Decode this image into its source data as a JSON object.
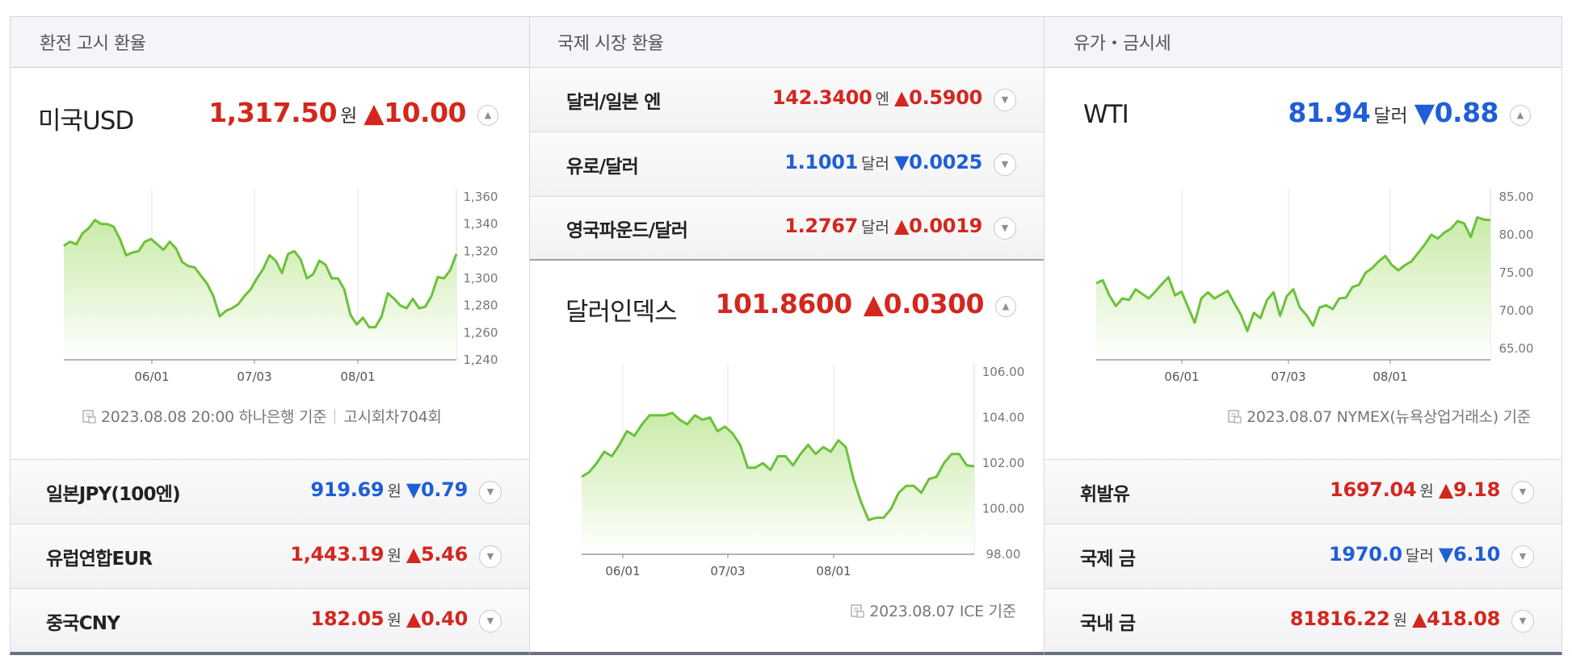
{
  "panels": {
    "exchange": {
      "header": "환전 고시 환율",
      "main": {
        "title": "미국USD",
        "value": "1,317.50",
        "unit": "원",
        "change": "▲10.00",
        "direction": "up"
      },
      "source": {
        "date": "2023.08.08 20:00 하나은행 기준",
        "extra": "고시회차704회"
      },
      "rows": [
        {
          "label": "일본JPY(100엔)",
          "value": "919.69",
          "unit": "원",
          "change": "▼0.79",
          "direction": "down"
        },
        {
          "label": "유럽연합EUR",
          "value": "1,443.19",
          "unit": "원",
          "change": "▲5.46",
          "direction": "up"
        },
        {
          "label": "중국CNY",
          "value": "182.05",
          "unit": "원",
          "change": "▲0.40",
          "direction": "up"
        }
      ]
    },
    "international": {
      "header": "국제 시장 환율",
      "rows": [
        {
          "label": "달러/일본 엔",
          "value": "142.3400",
          "unit": "엔",
          "change": "▲0.5900",
          "direction": "up"
        },
        {
          "label": "유로/달러",
          "value": "1.1001",
          "unit": "달러",
          "change": "▼0.0025",
          "direction": "down"
        },
        {
          "label": "영국파운드/달러",
          "value": "1.2767",
          "unit": "달러",
          "change": "▲0.0019",
          "direction": "up"
        }
      ],
      "main": {
        "title": "달러인덱스",
        "value": "101.8600",
        "unit": "",
        "change": "▲0.0300",
        "direction": "up"
      },
      "source": {
        "date": "2023.08.07 ICE 기준"
      }
    },
    "commodities": {
      "header": "유가・금시세",
      "main": {
        "title": "WTI",
        "value": "81.94",
        "unit": "달러",
        "change": "▼0.88",
        "direction": "down"
      },
      "source": {
        "date": "2023.08.07 NYMEX(뉴욕상업거래소) 기준"
      },
      "rows": [
        {
          "label": "휘발유",
          "value": "1697.04",
          "unit": "원",
          "change": "▲9.18",
          "direction": "up"
        },
        {
          "label": "국제 금",
          "value": "1970.0",
          "unit": "달러",
          "change": "▼6.10",
          "direction": "down"
        },
        {
          "label": "국내 금",
          "value": "81816.22",
          "unit": "원",
          "change": "▲418.08",
          "direction": "up"
        }
      ]
    }
  },
  "colors": {
    "up": "#d3271e",
    "down": "#1f5ed6",
    "line": "#6cc13a",
    "fill_top": "#c9eba8",
    "fill_bottom": "#ffffff"
  },
  "icons": {
    "toggle": "chevron-up-icon",
    "row_toggle": "chevron-down-icon",
    "source": "document-icon"
  },
  "chart_data": [
    {
      "type": "area",
      "series": [
        {
          "name": "미국USD",
          "values": [
            1324,
            1327,
            1325,
            1333,
            1337,
            1343,
            1340,
            1340,
            1338,
            1329,
            1317,
            1319,
            1320,
            1327,
            1329,
            1325,
            1321,
            1327,
            1322,
            1312,
            1309,
            1308,
            1302,
            1296,
            1287,
            1272,
            1276,
            1278,
            1281,
            1287,
            1292,
            1300,
            1307,
            1317,
            1313,
            1304,
            1318,
            1320,
            1314,
            1300,
            1303,
            1313,
            1310,
            1300,
            1300,
            1292,
            1273,
            1266,
            1271,
            1264,
            1264,
            1272,
            1289,
            1285,
            1280,
            1278,
            1285,
            1278,
            1279,
            1287,
            1301,
            1300,
            1306,
            1318
          ]
        }
      ],
      "x_labels": [
        "06/01",
        "07/03",
        "08/01"
      ],
      "ylim": [
        1240,
        1360
      ],
      "yticks": [
        "1,360",
        "1,340",
        "1,320",
        "1,300",
        "1,280",
        "1,260",
        "1,240"
      ]
    },
    {
      "type": "area",
      "series": [
        {
          "name": "달러인덱스",
          "values": [
            101.4,
            101.6,
            102.0,
            102.5,
            102.3,
            102.8,
            103.4,
            103.2,
            103.7,
            104.1,
            104.1,
            104.1,
            104.2,
            103.9,
            103.7,
            104.1,
            103.9,
            104.0,
            103.4,
            103.6,
            103.3,
            102.8,
            101.8,
            101.8,
            102.0,
            101.7,
            102.3,
            102.3,
            101.9,
            102.4,
            102.8,
            102.4,
            102.7,
            102.5,
            103.0,
            102.7,
            101.3,
            100.3,
            99.5,
            99.6,
            99.6,
            100.0,
            100.7,
            101.0,
            101.0,
            100.7,
            101.3,
            101.4,
            102.0,
            102.4,
            102.4,
            101.9,
            101.86
          ]
        }
      ],
      "x_labels": [
        "06/01",
        "07/03",
        "08/01"
      ],
      "ylim": [
        98.0,
        106.0
      ],
      "yticks": [
        "106.00",
        "104.00",
        "102.00",
        "100.00",
        "98.00"
      ]
    },
    {
      "type": "area",
      "series": [
        {
          "name": "WTI",
          "values": [
            73.6,
            74.0,
            72.0,
            70.6,
            71.6,
            71.4,
            72.8,
            72.2,
            71.6,
            72.5,
            73.5,
            74.4,
            72.0,
            72.5,
            70.4,
            68.4,
            71.6,
            72.4,
            71.6,
            72.1,
            72.6,
            71.0,
            69.5,
            67.3,
            69.7,
            69.0,
            71.4,
            72.4,
            69.3,
            71.9,
            72.8,
            70.4,
            69.4,
            68.0,
            70.4,
            70.7,
            70.2,
            71.6,
            71.7,
            73.1,
            73.4,
            75.0,
            75.6,
            76.5,
            77.2,
            76.0,
            75.3,
            76.0,
            76.5,
            77.6,
            78.7,
            80.0,
            79.5,
            80.3,
            80.8,
            81.8,
            81.5,
            79.7,
            82.3,
            82.0,
            81.94
          ]
        }
      ],
      "x_labels": [
        "06/01",
        "07/03",
        "08/01"
      ],
      "ylim": [
        63.5,
        85.0
      ],
      "yticks": [
        "85.00",
        "80.00",
        "75.00",
        "70.00",
        "65.00"
      ]
    }
  ]
}
